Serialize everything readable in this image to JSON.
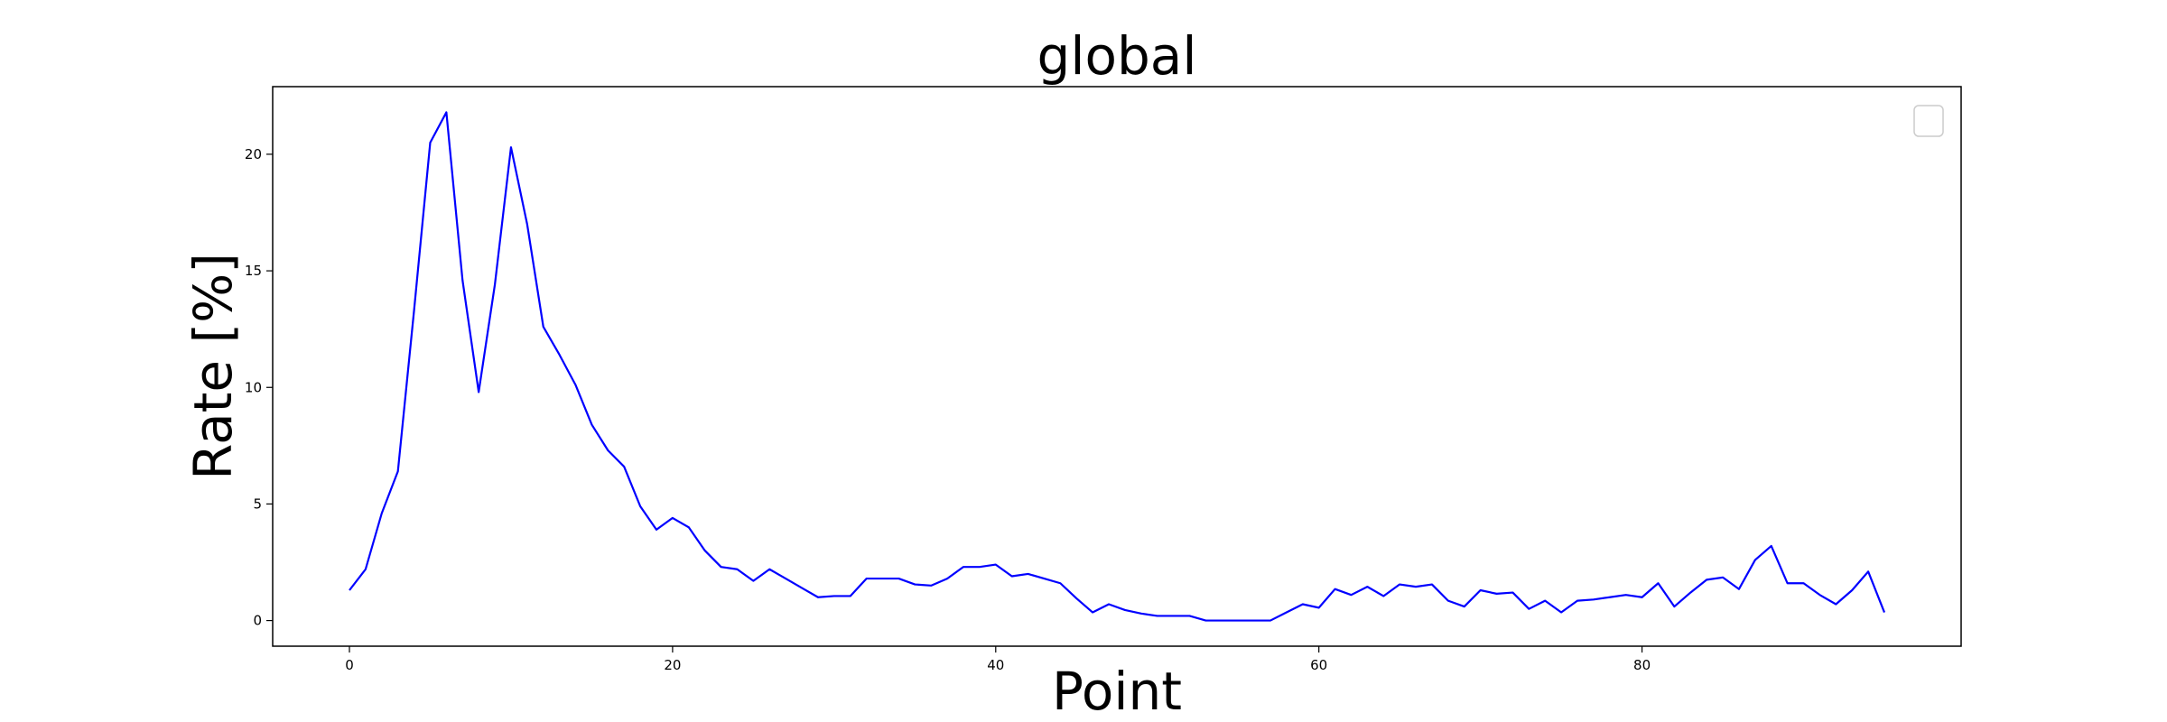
{
  "chart_data": {
    "type": "line",
    "title": "global",
    "xlabel": "Point",
    "ylabel": "Rate [%]",
    "xlim": [
      -4.75,
      99.75
    ],
    "ylim": [
      -1.1,
      22.9
    ],
    "xticks": [
      0,
      20,
      40,
      60,
      80
    ],
    "yticks": [
      0,
      5,
      10,
      15,
      20
    ],
    "legend": "top-right, empty",
    "grid": false,
    "colors": {
      "line": "#0000ff",
      "frame": "#000000"
    },
    "series": [
      {
        "color": "#0000ff",
        "x": [
          0,
          1,
          2,
          3,
          4,
          5,
          6,
          7,
          8,
          9,
          10,
          11,
          12,
          13,
          14,
          15,
          16,
          17,
          18,
          19,
          20,
          21,
          22,
          23,
          24,
          25,
          26,
          27,
          28,
          29,
          30,
          31,
          32,
          33,
          34,
          35,
          36,
          37,
          38,
          39,
          40,
          41,
          42,
          43,
          44,
          45,
          46,
          47,
          48,
          49,
          50,
          51,
          52,
          53,
          54,
          55,
          56,
          57,
          58,
          59,
          60,
          61,
          62,
          63,
          64,
          65,
          66,
          67,
          68,
          69,
          70,
          71,
          72,
          73,
          74,
          75,
          76,
          77,
          78,
          79,
          80,
          81,
          82,
          83,
          84,
          85,
          86,
          87,
          88,
          89,
          90,
          91,
          92,
          93,
          94,
          95
        ],
        "y": [
          1.3,
          2.2,
          4.6,
          6.4,
          13.3,
          20.5,
          21.8,
          14.6,
          9.8,
          14.4,
          20.3,
          17.0,
          12.6,
          11.4,
          10.1,
          8.4,
          7.3,
          6.6,
          4.9,
          3.9,
          4.4,
          4.0,
          3.0,
          2.3,
          2.2,
          1.7,
          2.2,
          1.8,
          1.4,
          1.0,
          1.05,
          1.05,
          1.8,
          1.8,
          1.8,
          1.55,
          1.5,
          1.8,
          2.3,
          2.3,
          2.4,
          1.9,
          2.0,
          1.8,
          1.6,
          0.95,
          0.35,
          0.7,
          0.45,
          0.3,
          0.2,
          0.2,
          0.2,
          0.0,
          0.0,
          0.0,
          0.0,
          0.0,
          0.35,
          0.7,
          0.55,
          1.35,
          1.1,
          1.45,
          1.05,
          1.55,
          1.45,
          1.55,
          0.85,
          0.6,
          1.3,
          1.15,
          1.2,
          0.5,
          0.85,
          0.35,
          0.85,
          0.9,
          1.0,
          1.1,
          1.0,
          1.6,
          0.6,
          1.2,
          1.75,
          1.85,
          1.35,
          2.6,
          3.2,
          1.6,
          1.6,
          1.1,
          0.7,
          1.3,
          2.1,
          0.35
        ]
      }
    ]
  }
}
